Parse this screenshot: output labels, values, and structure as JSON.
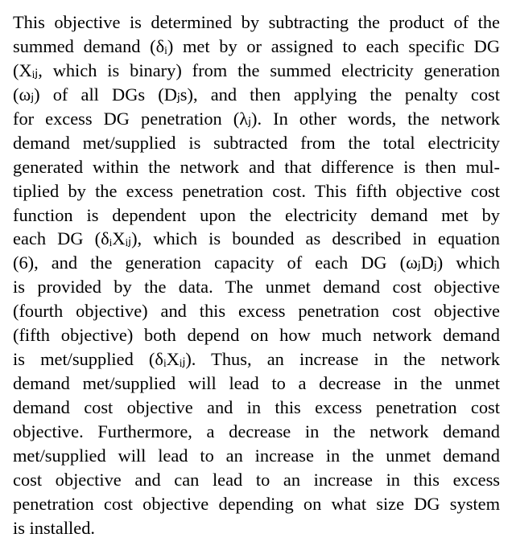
{
  "paragraph": {
    "lines": [
      "This objective is determined by subtracting the product of the",
      "summed demand (δᵢ) met by or assigned to each specific DG",
      "(Xᵢⱼ, which is binary) from the summed electricity generation",
      "(ωⱼ) of all DGs (Dⱼs), and then applying the penalty cost",
      "for excess DG penetration (λⱼ). In other words, the network",
      "demand met/supplied is subtracted from the total electricity",
      "generated within the network and that difference is then mul-",
      "tiplied by the excess penetration cost. This fifth objective cost",
      "function is dependent upon the electricity demand met by",
      "each DG (δᵢXᵢⱼ), which is bounded as described in equation",
      "(6), and the generation capacity of each DG (ωⱼDⱼ) which",
      "is provided by the data. The unmet demand cost objective",
      "(fourth objective) and this excess penetration cost objective",
      "(fifth objective) both depend on how much network demand",
      "is met/supplied (δᵢXᵢⱼ). Thus, an increase in the network",
      "demand met/supplied will lead to a decrease in the unmet",
      "demand cost objective and in this excess penetration cost",
      "objective. Furthermore, a decrease in the network demand",
      "met/supplied will lead to an increase in the unmet demand",
      "cost objective and can lead to an increase in this excess",
      "penetration cost objective depending on what size DG system",
      "is installed."
    ]
  }
}
